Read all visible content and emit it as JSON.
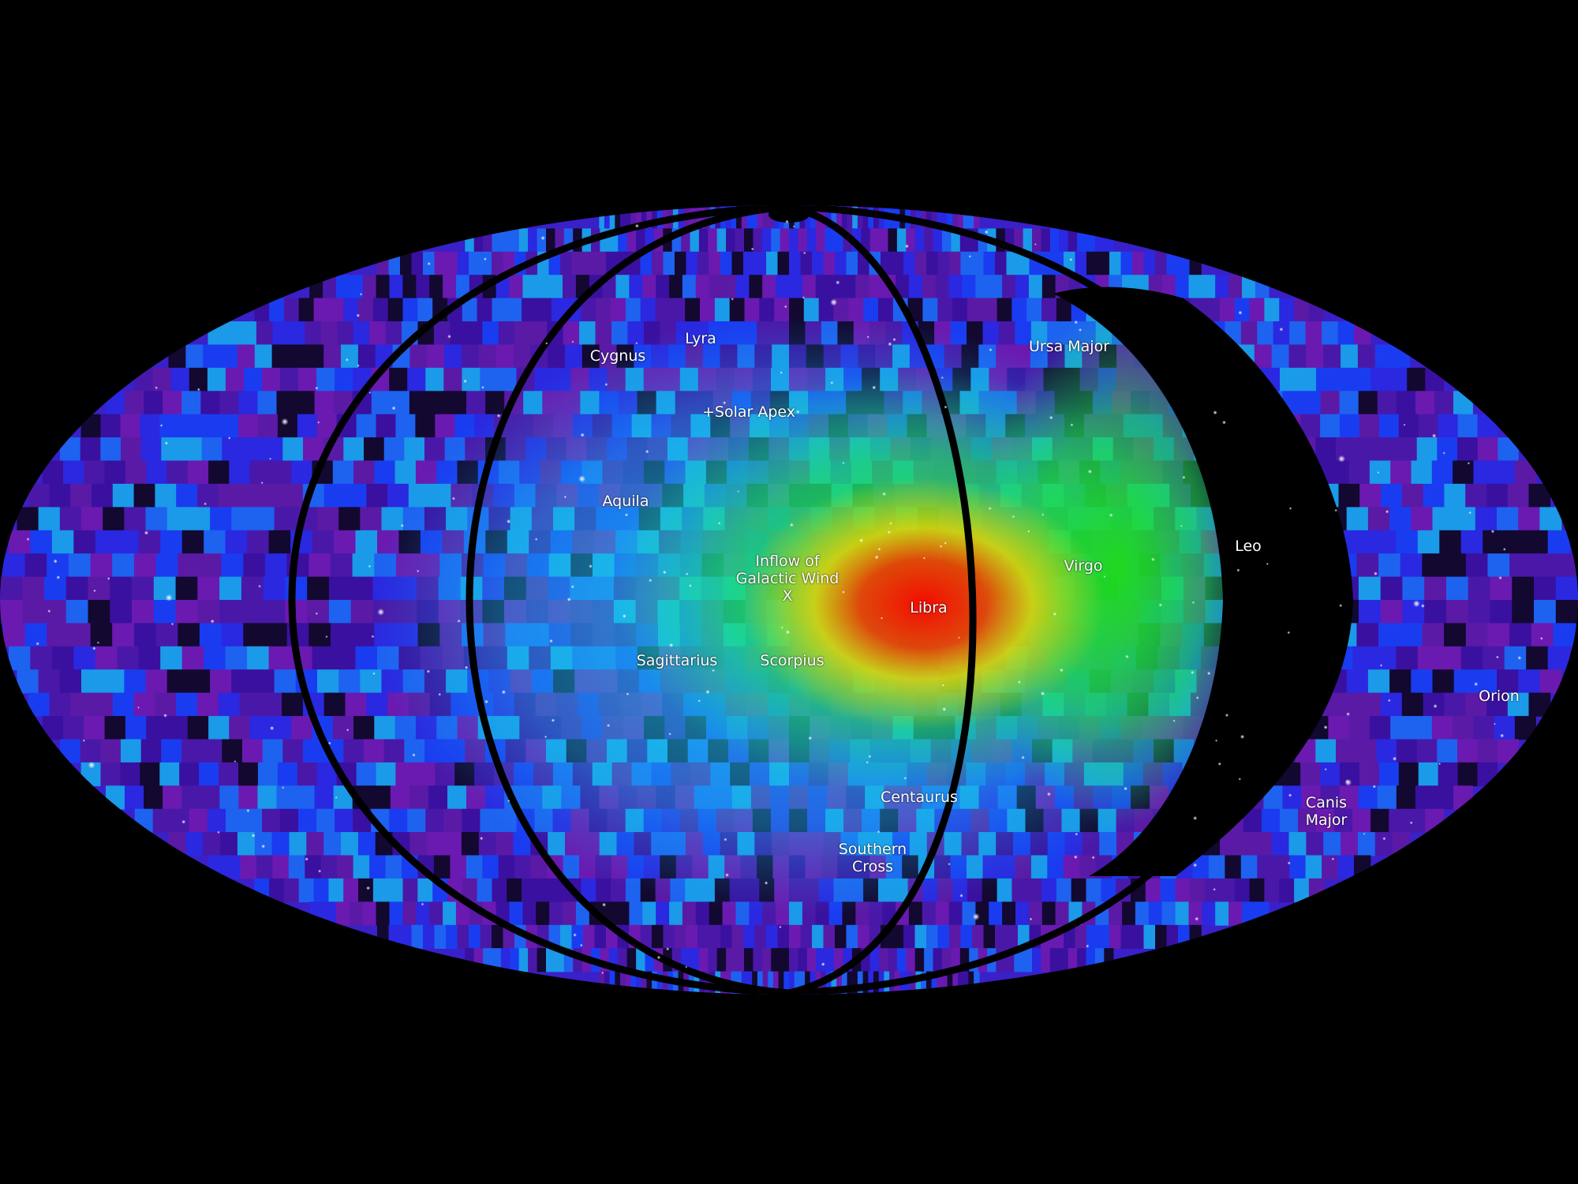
{
  "map": {
    "colors": {
      "background": "#000000",
      "low": "#5a1aa6",
      "mid_low": "#1a3cf0",
      "mid": "#19d6e6",
      "high": "#1ee01a",
      "very_high": "#f0e600",
      "peak": "#e60000",
      "meridian": "#000000"
    },
    "labels": {
      "cygnus": "Cygnus",
      "lyra": "Lyra",
      "ursa_major": "Ursa Major",
      "solar_apex": "+Solar Apex",
      "aquila": "Aquila",
      "inflow_line1": "Inflow of",
      "inflow_line2": "Galactic Wind",
      "inflow_line3": "X",
      "libra": "Libra",
      "virgo": "Virgo",
      "leo": "Leo",
      "sagittarius": "Sagittarius",
      "scorpius": "Scorpius",
      "orion": "Orion",
      "centaurus": "Centaurus",
      "canis_line1": "Canis",
      "canis_line2": "Major",
      "southern_line1": "Southern",
      "southern_line2": "Cross"
    }
  }
}
